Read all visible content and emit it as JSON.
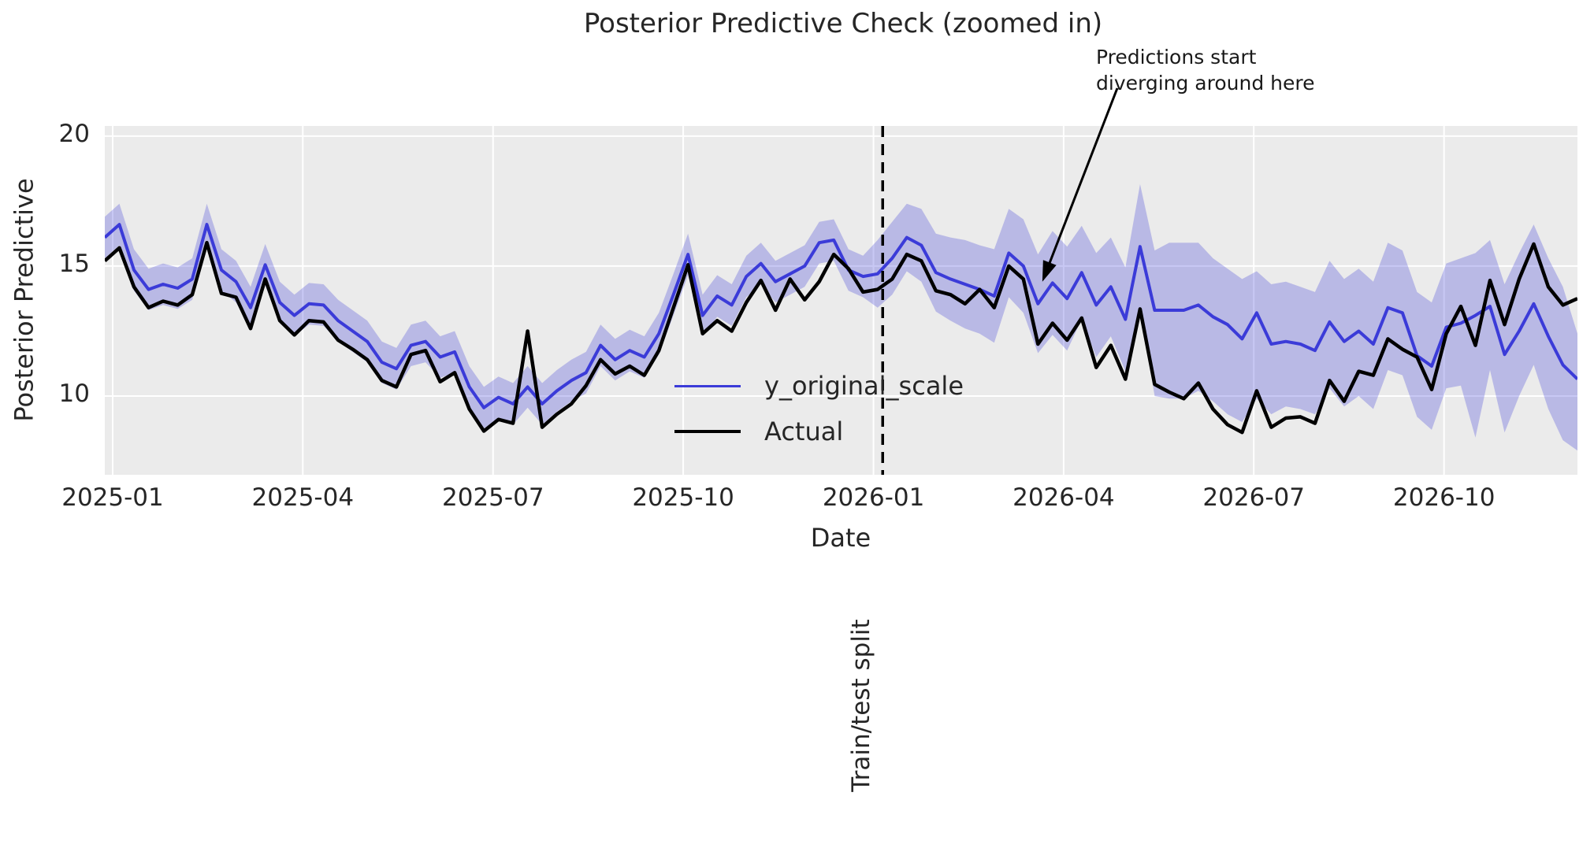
{
  "chart": {
    "split_label": "Train/test split"
  },
  "chart_data": {
    "type": "line",
    "title": "Posterior Predictive Check (zoomed in)",
    "xlabel": "Date",
    "ylabel": "Posterior Predictive",
    "x_unit": "weekly points starting 2024-12-28",
    "n_points": 102,
    "ylim": [
      6.97,
      20.39
    ],
    "grid": "on",
    "plot_bg": "#ebebeb",
    "grid_color": "#ffffff",
    "text_color": "#262626",
    "y_ticks": [
      {
        "label": "20",
        "value": 20
      },
      {
        "label": "15",
        "value": 15
      },
      {
        "label": "10",
        "value": 10
      }
    ],
    "x_ticks": [
      {
        "label": "2025-01",
        "week": 0.54
      },
      {
        "label": "2025-04",
        "week": 13.58
      },
      {
        "label": "2025-07",
        "week": 26.63
      },
      {
        "label": "2025-10",
        "week": 39.67
      },
      {
        "label": "2026-01",
        "week": 52.72
      },
      {
        "label": "2026-04",
        "week": 65.76
      },
      {
        "label": "2026-07",
        "week": 78.8
      },
      {
        "label": "2026-10",
        "week": 91.85
      }
    ],
    "split_line": {
      "week": 53.35,
      "style": "dashed",
      "color": "#000000",
      "label": "Train/test split"
    },
    "annotation": {
      "line1": "Predictions start",
      "line2": "diverging around here",
      "target_week": 64.3,
      "target_value": 14.4
    },
    "legend": [
      {
        "label": "y_original_scale",
        "color": "#3b3bd8",
        "width": 3.5
      },
      {
        "label": "Actual",
        "color": "#000000",
        "width": 4.5
      }
    ],
    "band": {
      "name": "posterior credible interval",
      "color": "#3b3bd8",
      "opacity": 0.28,
      "lower": [
        15.3,
        15.8,
        14.05,
        13.3,
        13.5,
        13.35,
        13.7,
        15.8,
        14.05,
        13.6,
        12.6,
        14.25,
        12.8,
        12.3,
        12.75,
        12.7,
        12.1,
        11.7,
        11.3,
        10.5,
        10.25,
        11.15,
        11.3,
        10.7,
        10.9,
        9.55,
        8.75,
        9.15,
        8.9,
        9.55,
        8.9,
        9.4,
        9.8,
        10.1,
        11.15,
        10.6,
        10.95,
        10.7,
        11.6,
        13.1,
        14.65,
        12.3,
        13.05,
        12.7,
        13.8,
        14.3,
        13.6,
        13.9,
        14.2,
        15.1,
        15.2,
        14.05,
        13.8,
        13.4,
        13.9,
        14.8,
        14.4,
        13.25,
        12.9,
        12.6,
        12.4,
        12.05,
        13.8,
        13.2,
        11.65,
        12.35,
        11.75,
        12.95,
        11.5,
        12.3,
        10.95,
        13.35,
        10.0,
        9.9,
        9.9,
        10.2,
        9.8,
        9.3,
        9.0,
        9.9,
        9.3,
        9.6,
        9.5,
        9.3,
        10.3,
        9.6,
        10.0,
        9.5,
        11.0,
        10.8,
        9.2,
        8.7,
        10.3,
        10.4,
        8.4,
        11.0,
        8.6,
        10.0,
        11.2,
        9.5,
        8.3,
        7.9
      ],
      "upper": [
        16.9,
        17.4,
        15.65,
        14.9,
        15.1,
        14.95,
        15.3,
        17.4,
        15.65,
        15.2,
        14.2,
        15.85,
        14.4,
        13.9,
        14.35,
        14.3,
        13.7,
        13.3,
        12.9,
        12.1,
        11.85,
        12.75,
        12.9,
        12.3,
        12.5,
        11.15,
        10.35,
        10.75,
        10.5,
        11.15,
        10.5,
        11.0,
        11.4,
        11.7,
        12.75,
        12.2,
        12.55,
        12.3,
        13.2,
        14.7,
        16.25,
        13.9,
        14.65,
        14.3,
        15.4,
        15.9,
        15.2,
        15.5,
        15.8,
        16.7,
        16.8,
        15.65,
        15.4,
        16.0,
        16.7,
        17.4,
        17.2,
        16.25,
        16.1,
        16.0,
        15.8,
        15.65,
        17.2,
        16.8,
        15.45,
        16.35,
        15.75,
        16.55,
        15.5,
        16.1,
        14.95,
        18.15,
        15.6,
        15.9,
        15.9,
        15.9,
        15.3,
        14.9,
        14.5,
        14.8,
        14.3,
        14.4,
        14.2,
        14.0,
        15.2,
        14.5,
        14.9,
        14.4,
        15.9,
        15.6,
        14.0,
        13.6,
        15.1,
        15.3,
        15.5,
        16.0,
        14.3,
        15.5,
        16.6,
        15.3,
        14.2,
        12.4
      ]
    },
    "series": [
      {
        "name": "y_original_scale",
        "color": "#3b3bd8",
        "line_width": 4,
        "values": [
          16.1,
          16.6,
          14.85,
          14.1,
          14.3,
          14.15,
          14.5,
          16.6,
          14.85,
          14.4,
          13.4,
          15.05,
          13.6,
          13.1,
          13.55,
          13.5,
          12.9,
          12.5,
          12.1,
          11.3,
          11.05,
          11.95,
          12.1,
          11.5,
          11.7,
          10.35,
          9.55,
          9.95,
          9.7,
          10.35,
          9.7,
          10.2,
          10.6,
          10.9,
          11.95,
          11.4,
          11.75,
          11.5,
          12.4,
          13.9,
          15.45,
          13.1,
          13.85,
          13.5,
          14.6,
          15.1,
          14.4,
          14.7,
          15.0,
          15.9,
          16.0,
          14.85,
          14.6,
          14.7,
          15.3,
          16.1,
          15.8,
          14.75,
          14.5,
          14.3,
          14.1,
          13.85,
          15.5,
          15.0,
          13.55,
          14.35,
          13.75,
          14.75,
          13.5,
          14.2,
          12.95,
          15.75,
          13.3,
          13.3,
          13.3,
          13.5,
          13.05,
          12.75,
          12.2,
          13.2,
          12.0,
          12.1,
          12.0,
          11.75,
          12.85,
          12.1,
          12.5,
          12.0,
          13.4,
          13.2,
          11.55,
          11.15,
          12.65,
          12.8,
          13.1,
          13.45,
          11.6,
          12.5,
          13.55,
          12.3,
          11.2,
          10.65
        ]
      },
      {
        "name": "Actual",
        "color": "#000000",
        "line_width": 4.5,
        "values": [
          15.2,
          15.7,
          14.2,
          13.4,
          13.65,
          13.5,
          13.9,
          15.9,
          13.95,
          13.8,
          12.6,
          14.5,
          12.9,
          12.35,
          12.9,
          12.85,
          12.15,
          11.8,
          11.4,
          10.6,
          10.35,
          11.6,
          11.75,
          10.55,
          10.9,
          9.5,
          8.65,
          9.1,
          8.95,
          12.5,
          8.8,
          9.3,
          9.7,
          10.4,
          11.4,
          10.85,
          11.15,
          10.8,
          11.75,
          13.4,
          15.05,
          12.4,
          12.9,
          12.5,
          13.6,
          14.45,
          13.3,
          14.5,
          13.7,
          14.4,
          15.45,
          14.9,
          14.0,
          14.1,
          14.5,
          15.45,
          15.2,
          14.05,
          13.9,
          13.55,
          14.1,
          13.4,
          15.0,
          14.5,
          12.0,
          12.8,
          12.15,
          13.0,
          11.1,
          11.95,
          10.65,
          13.35,
          10.45,
          10.15,
          9.9,
          10.5,
          9.5,
          8.9,
          8.6,
          10.2,
          8.8,
          9.15,
          9.2,
          8.95,
          10.6,
          9.8,
          10.95,
          10.8,
          12.2,
          11.8,
          11.5,
          10.25,
          12.4,
          13.45,
          11.95,
          14.45,
          12.75,
          14.5,
          15.85,
          14.2,
          13.5,
          13.75
        ]
      }
    ]
  }
}
